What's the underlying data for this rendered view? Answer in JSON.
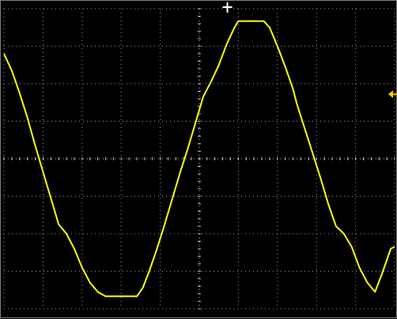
{
  "chart_data": {
    "type": "line",
    "title": "",
    "xlabel": "",
    "ylabel": "",
    "xlim": [
      0,
      10
    ],
    "ylim": [
      -4,
      4
    ],
    "grid": true,
    "x_divisions": 10,
    "y_divisions": 8,
    "series": [
      {
        "color": "#FFFF00",
        "x": [
          0.0,
          0.2,
          0.4,
          0.6,
          0.8,
          1.0,
          1.2,
          1.4,
          1.6,
          1.8,
          2.0,
          2.2,
          2.4,
          2.6,
          2.8,
          3.0,
          3.2,
          3.4,
          3.55,
          3.7,
          3.9,
          4.1,
          4.3,
          4.5,
          4.7,
          4.9,
          5.1,
          5.3,
          5.5,
          5.7,
          5.9,
          6.0,
          6.1,
          6.3,
          6.5,
          6.65,
          6.8,
          7.0,
          7.2,
          7.4,
          7.5,
          7.7,
          7.9,
          8.1,
          8.3,
          8.5,
          8.7,
          8.9,
          9.1,
          9.3,
          9.5,
          9.7,
          9.9,
          10.0
        ],
        "y": [
          2.8,
          2.35,
          1.75,
          1.1,
          0.35,
          -0.35,
          -1.05,
          -1.75,
          -2.0,
          -2.4,
          -2.9,
          -3.3,
          -3.55,
          -3.67,
          -3.67,
          -3.67,
          -3.67,
          -3.67,
          -3.45,
          -3.05,
          -2.45,
          -1.8,
          -1.1,
          -0.4,
          0.25,
          0.95,
          1.65,
          2.05,
          2.5,
          3.05,
          3.5,
          3.67,
          3.67,
          3.67,
          3.67,
          3.67,
          3.5,
          3.0,
          2.45,
          1.85,
          1.45,
          0.8,
          0.15,
          -0.5,
          -1.2,
          -1.8,
          -2.0,
          -2.35,
          -2.9,
          -3.3,
          -3.55,
          -3.0,
          -2.4,
          -2.35
        ]
      }
    ],
    "trigger_marker_x": 5.72,
    "level_marker_y": 1.72
  }
}
